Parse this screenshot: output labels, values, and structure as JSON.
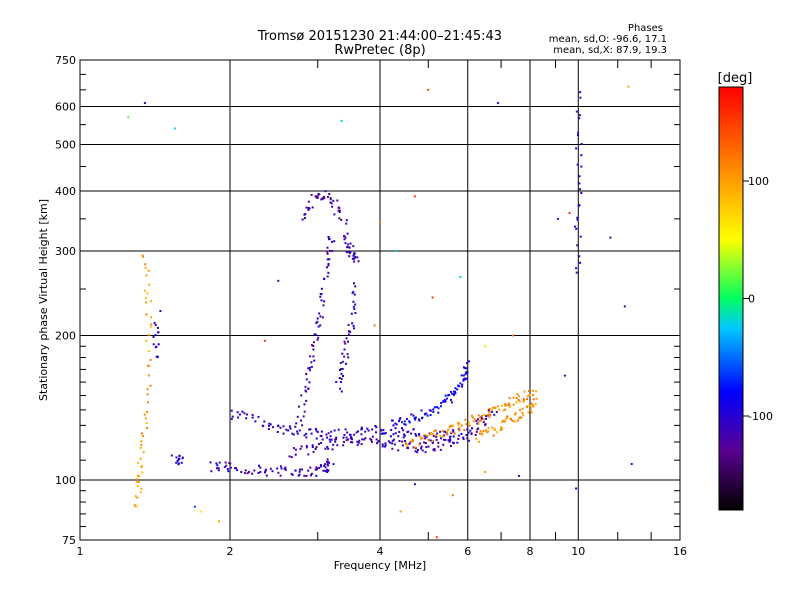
{
  "chart_data": {
    "type": "scatter",
    "title": "Tromsø 20151230 21:44:00–21:45:43",
    "subtitle": "RwPretec (8p)",
    "xlabel": "Frequency [MHz]",
    "ylabel": "Stationary phase Virtual Height [km]",
    "x_scale": "log",
    "y_scale": "log",
    "xlim": [
      1,
      16
    ],
    "ylim": [
      75,
      750
    ],
    "x_ticks": [
      1,
      2,
      4,
      6,
      8,
      10,
      16
    ],
    "x_tick_labels": [
      "1",
      "2",
      "4",
      "6",
      "8",
      "10",
      "16"
    ],
    "y_ticks": [
      75,
      100,
      200,
      300,
      400,
      500,
      600,
      750
    ],
    "y_tick_labels": [
      "75",
      "100",
      "200",
      "300",
      "400",
      "500",
      "600",
      "750"
    ],
    "grid": true,
    "phases": {
      "title": "Phases",
      "line1": "mean, sd,O: -96.6, 17.1",
      "line2": "mean, sd,X:  87.9, 19.3"
    },
    "colorbar": {
      "unit": "[deg]",
      "range": [
        -180,
        180
      ],
      "ticks": [
        100,
        0,
        -100
      ],
      "tick_labels": [
        "100",
        "0",
        "-100"
      ],
      "colors": [
        "#000000",
        "#5a0090",
        "#0000ff",
        "#00c8ff",
        "#00ff60",
        "#ffff00",
        "#ff8000",
        "#ff0000"
      ]
    },
    "traces": [
      {
        "x": [
          1.85,
          2.0,
          2.3,
          2.6,
          2.9,
          3.1,
          3.2
        ],
        "y": [
          107,
          106,
          105,
          104,
          104,
          106,
          109
        ],
        "phase": -110
      },
      {
        "x": [
          1.55,
          1.62
        ],
        "y": [
          110,
          111
        ],
        "phase": -100
      },
      {
        "x": [
          2.0,
          2.3,
          2.6,
          2.9,
          3.2,
          3.5,
          3.9,
          4.3,
          4.8,
          5.3,
          5.8
        ],
        "y": [
          138,
          132,
          127,
          125,
          124,
          125,
          127,
          126,
          124,
          123,
          126
        ],
        "phase": -105
      },
      {
        "x": [
          2.65,
          3.0,
          3.4,
          3.8,
          4.2,
          4.6,
          5.0,
          5.5,
          6.0,
          6.4,
          6.8
        ],
        "y": [
          114,
          117,
          120,
          122,
          119,
          117,
          117,
          119,
          124,
          132,
          140
        ],
        "phase": -115
      },
      {
        "x": [
          4.5,
          5.0,
          5.5,
          6.0,
          6.5,
          7.0,
          7.6,
          8.2
        ],
        "y": [
          118,
          122,
          126,
          131,
          137,
          143,
          148,
          151
        ],
        "phase": 110
      },
      {
        "x": [
          6.3,
          6.8,
          7.3,
          7.8,
          8.3
        ],
        "y": [
          123,
          127,
          133,
          139,
          147
        ],
        "phase": 105
      },
      {
        "x": [
          4.2,
          4.6,
          5.0,
          5.4,
          5.7,
          5.9,
          6.0
        ],
        "y": [
          131,
          134,
          138,
          144,
          152,
          163,
          175
        ],
        "phase": -90
      },
      {
        "x": [
          2.75,
          2.85,
          2.95,
          3.05,
          3.15,
          3.2
        ],
        "y": [
          130,
          160,
          190,
          230,
          290,
          330
        ],
        "phase": -110
      },
      {
        "x": [
          3.3,
          3.4,
          3.5,
          3.55
        ],
        "y": [
          155,
          180,
          210,
          260
        ],
        "phase": -110
      },
      {
        "x": [
          2.8,
          3.0,
          3.2,
          3.4
        ],
        "y": [
          350,
          395,
          385,
          340
        ],
        "phase": -120
      },
      {
        "x": [
          3.4,
          3.5,
          3.6
        ],
        "y": [
          320,
          300,
          285
        ],
        "phase": -110
      },
      {
        "x": [
          9.95,
          10.0,
          10.05
        ],
        "y": [
          270,
          420,
          650
        ],
        "phase": -100
      },
      {
        "x": [
          1.3,
          1.32,
          1.36,
          1.38,
          1.35
        ],
        "y": [
          88,
          105,
          140,
          220,
          300
        ],
        "phase": 100
      },
      {
        "x": [
          1.42,
          1.43
        ],
        "y": [
          180,
          215
        ],
        "phase": -100
      }
    ],
    "points": [
      {
        "x": 1.25,
        "y": 570,
        "phase": 20
      },
      {
        "x": 1.35,
        "y": 610,
        "phase": -110
      },
      {
        "x": 1.55,
        "y": 540,
        "phase": -20
      },
      {
        "x": 3.35,
        "y": 560,
        "phase": -20
      },
      {
        "x": 5.0,
        "y": 650,
        "phase": 150
      },
      {
        "x": 6.9,
        "y": 610,
        "phase": -110
      },
      {
        "x": 12.6,
        "y": 660,
        "phase": 100
      },
      {
        "x": 11.6,
        "y": 320,
        "phase": -110
      },
      {
        "x": 12.4,
        "y": 230,
        "phase": -110
      },
      {
        "x": 9.1,
        "y": 350,
        "phase": -120
      },
      {
        "x": 9.6,
        "y": 360,
        "phase": 150
      },
      {
        "x": 12.8,
        "y": 108,
        "phase": -110
      },
      {
        "x": 9.9,
        "y": 96,
        "phase": -100
      },
      {
        "x": 9.4,
        "y": 165,
        "phase": -110
      },
      {
        "x": 4.3,
        "y": 300,
        "phase": -20
      },
      {
        "x": 4.7,
        "y": 390,
        "phase": 150
      },
      {
        "x": 5.1,
        "y": 240,
        "phase": 150
      },
      {
        "x": 5.8,
        "y": 265,
        "phase": -20
      },
      {
        "x": 4.0,
        "y": 345,
        "phase": 120
      },
      {
        "x": 3.9,
        "y": 210,
        "phase": 120
      },
      {
        "x": 2.35,
        "y": 195,
        "phase": 150
      },
      {
        "x": 2.5,
        "y": 260,
        "phase": -120
      },
      {
        "x": 1.75,
        "y": 86,
        "phase": 60
      },
      {
        "x": 1.7,
        "y": 88,
        "phase": -60
      },
      {
        "x": 1.9,
        "y": 82,
        "phase": 100
      },
      {
        "x": 4.4,
        "y": 86,
        "phase": 100
      },
      {
        "x": 5.2,
        "y": 76,
        "phase": 150
      },
      {
        "x": 5.6,
        "y": 93,
        "phase": 120
      },
      {
        "x": 4.7,
        "y": 98,
        "phase": -110
      },
      {
        "x": 6.5,
        "y": 104,
        "phase": 100
      },
      {
        "x": 7.6,
        "y": 102,
        "phase": -110
      },
      {
        "x": 7.4,
        "y": 200,
        "phase": 120
      },
      {
        "x": 6.5,
        "y": 190,
        "phase": 40
      },
      {
        "x": 1.45,
        "y": 225,
        "phase": -110
      }
    ]
  }
}
